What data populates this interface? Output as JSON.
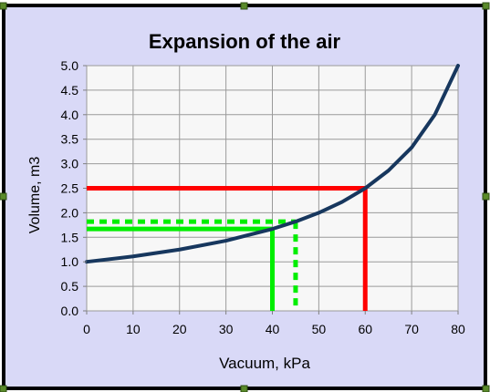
{
  "chart_data": {
    "type": "line",
    "title": "Expansion of the air",
    "xlabel": "Vacuum, kPa",
    "ylabel": "Volume, m3",
    "xlim": [
      0,
      80
    ],
    "ylim": [
      0,
      5
    ],
    "grid": true,
    "x_ticks": [
      "0",
      "10",
      "20",
      "30",
      "40",
      "50",
      "60",
      "70",
      "80"
    ],
    "y_ticks": [
      "0.0",
      "0.5",
      "1.0",
      "1.5",
      "2.0",
      "2.5",
      "3.0",
      "3.5",
      "4.0",
      "4.5",
      "5.0"
    ],
    "series": [
      {
        "color": "#17375e",
        "x": [
          0,
          10,
          20,
          30,
          40,
          45,
          50,
          55,
          60,
          65,
          70,
          75,
          80
        ],
        "y": [
          1.0,
          1.11,
          1.25,
          1.43,
          1.67,
          1.82,
          2.0,
          2.22,
          2.5,
          2.86,
          3.33,
          4.0,
          5.0
        ]
      }
    ],
    "guides": [
      {
        "x": 60,
        "y": 2.5,
        "color": "#ff0000",
        "style": "solid"
      },
      {
        "x": 40,
        "y": 1.67,
        "color": "#00ee00",
        "style": "solid"
      },
      {
        "x": 45,
        "y": 1.82,
        "color": "#00ee00",
        "style": "dashed"
      }
    ]
  }
}
